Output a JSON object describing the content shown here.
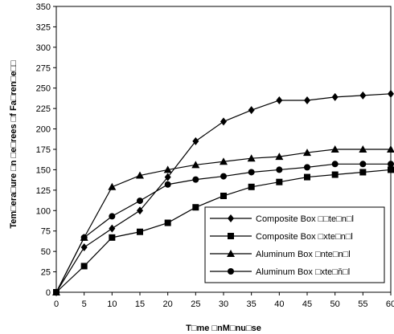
{
  "chart_data": {
    "type": "line",
    "xlabel": "T□me □nM□nu□se",
    "ylabel": "Tem□era□ure □n □e□rees □f Fa□ren□e□□",
    "xlim": [
      0,
      60
    ],
    "ylim": [
      0,
      350
    ],
    "x": [
      0,
      5,
      10,
      15,
      20,
      25,
      30,
      35,
      40,
      45,
      50,
      55,
      60
    ],
    "xticks": [
      "0",
      "5",
      "10",
      "15",
      "20",
      "25",
      "30",
      "35",
      "40",
      "45",
      "50",
      "55",
      "60"
    ],
    "yticks": [
      "0",
      "25",
      "50",
      "75",
      "100",
      "125",
      "150",
      "175",
      "200",
      "225",
      "250",
      "275",
      "300",
      "325",
      "350"
    ],
    "grid": false,
    "legend_position": "bottom-right",
    "series": [
      {
        "name": "Composite Box □□te□n□l",
        "marker": "diamond",
        "values": [
          0,
          55,
          78,
          100,
          141,
          185,
          209,
          223,
          235,
          235,
          239,
          241,
          243
        ]
      },
      {
        "name": "Composite Box □xte□n□l",
        "marker": "square",
        "values": [
          0,
          32,
          67,
          74,
          85,
          104,
          118,
          129,
          135,
          141,
          144,
          147,
          150
        ]
      },
      {
        "name": "Aluminum Box □nte□n□l",
        "marker": "triangle",
        "values": [
          0,
          67,
          129,
          143,
          150,
          156,
          160,
          164,
          166,
          171,
          175,
          175,
          175
        ]
      },
      {
        "name": "Aluminum Box □xte□ň□l",
        "marker": "circle",
        "values": [
          0,
          67,
          93,
          112,
          132,
          138,
          142,
          147,
          150,
          153,
          157,
          157,
          157
        ]
      }
    ]
  }
}
